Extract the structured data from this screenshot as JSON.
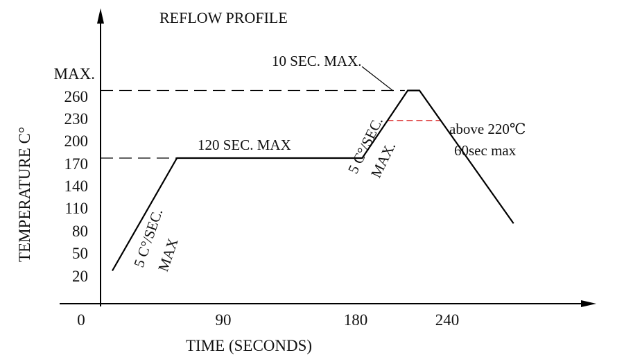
{
  "chart_data": {
    "type": "line",
    "title": "REFLOW PROFILE",
    "xlabel": "TIME (SECONDS)",
    "ylabel": "TEMPERATURE C°",
    "x_ticks": [
      "0",
      "90",
      "180",
      "240"
    ],
    "y_ticks": [
      "20",
      "50",
      "80",
      "110",
      "140",
      "170",
      "200",
      "230",
      "260",
      "MAX."
    ],
    "xlim": [
      0,
      320
    ],
    "ylim": [
      0,
      300
    ],
    "grid": false,
    "series": [
      {
        "x": [
          8,
          52,
          178,
          209,
          217,
          281
        ],
        "y": [
          20,
          170,
          170,
          260,
          260,
          83
        ]
      }
    ],
    "reference_lines": [
      {
        "y": 260,
        "x_start": 0,
        "x_end": 207,
        "color": "#000000",
        "style": "dashed"
      },
      {
        "y": 170,
        "x_start": 0,
        "x_end": 52,
        "color": "#000000",
        "style": "dashed"
      },
      {
        "y": 220,
        "x_start": 195,
        "x_end": 231,
        "color": "#d40000",
        "style": "dashed"
      }
    ],
    "annotations": [
      {
        "text": "10 SEC. MAX."
      },
      {
        "text": "120 SEC. MAX"
      },
      {
        "text": "5 C°/SEC."
      },
      {
        "text": "MAX"
      },
      {
        "text": "5 C°/SEC."
      },
      {
        "text": "MAX."
      },
      {
        "text": "above 220℃"
      },
      {
        "text": "60sec max"
      }
    ]
  }
}
